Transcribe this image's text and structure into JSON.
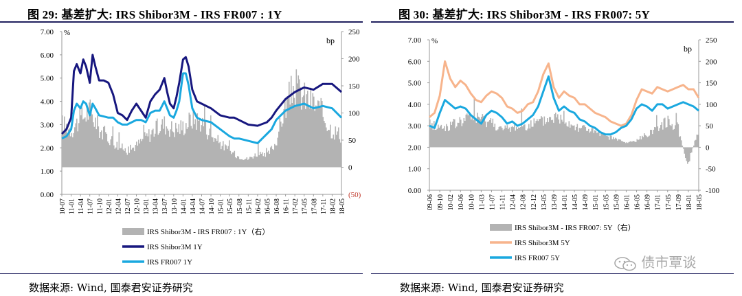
{
  "figures": [
    {
      "title": "图 29:  基差扩大:  IRS Shibor3M - IRS FR007 : 1Y",
      "source": "数据来源:  Wind,  国泰君安证券研究"
    },
    {
      "title": "图 30:  基差扩大:  IRS Shibor3M - IRS FR007: 5Y",
      "source": "数据来源:  Wind,  国泰君安证券研究"
    }
  ],
  "watermark": "债市覃谈",
  "colors": {
    "basis": "#b3b3b3",
    "navy": "#17177f",
    "cyan": "#1aa8df",
    "peach": "#f7b48c",
    "neg_label": "#c0392b",
    "frame": "#1f1f5e"
  },
  "chart_data": [
    {
      "type": "line",
      "title": "",
      "left_axis_unit": "%",
      "right_axis_unit": "bp",
      "left_ylim": [
        0,
        7
      ],
      "left_ticks": [
        "0.00",
        "1.00",
        "2.00",
        "3.00",
        "4.00",
        "5.00",
        "6.00",
        "7.00"
      ],
      "right_ylim": [
        -50,
        250
      ],
      "right_ticks": [
        "(50)",
        "0",
        "50",
        "100",
        "150",
        "200",
        "250"
      ],
      "x_ticks": [
        "10-07",
        "11-01",
        "11-04",
        "11-07",
        "11-10",
        "12-01",
        "12-04",
        "12-07",
        "12-10",
        "13-01",
        "13-04",
        "13-07",
        "13-10",
        "14-01",
        "14-04",
        "14-07",
        "14-10",
        "15-01",
        "15-05",
        "15-08",
        "15-11",
        "16-02",
        "16-05",
        "16-08",
        "16-11",
        "17-02",
        "17-05",
        "17-08",
        "17-11",
        "18-02",
        "18-05"
      ],
      "grid": false,
      "legend_position": "bottom",
      "series": [
        {
          "name": "IRS Shibor3M - IRS FR007 : 1Y（右）",
          "axis": "right",
          "style": "bar",
          "x": [
            0,
            1,
            2,
            3,
            4,
            5,
            6,
            7,
            8,
            9,
            10,
            11,
            12,
            13,
            14,
            15,
            16,
            17,
            18,
            19,
            20,
            21,
            22,
            23,
            24,
            25,
            26,
            27,
            28,
            29,
            30
          ],
          "y": [
            80,
            70,
            90,
            105,
            70,
            55,
            40,
            30,
            40,
            55,
            70,
            80,
            70,
            75,
            90,
            85,
            60,
            45,
            30,
            20,
            15,
            25,
            20,
            45,
            110,
            150,
            130,
            120,
            100,
            70,
            60
          ]
        },
        {
          "name": "IRS Shibor3M 1Y",
          "axis": "left",
          "x": [
            0,
            0.5,
            1,
            1.3,
            1.6,
            2,
            2.3,
            2.6,
            3,
            3.3,
            3.6,
            4,
            4.5,
            5,
            5.5,
            6,
            6.5,
            7,
            7.5,
            8,
            8.5,
            9,
            9.5,
            10,
            10.5,
            11,
            11.3,
            11.6,
            12,
            12.3,
            12.6,
            13,
            13.3,
            13.6,
            14,
            14.5,
            15,
            16,
            17,
            18,
            18.5,
            19,
            20,
            21,
            22,
            22.5,
            23,
            24,
            25,
            26,
            27,
            28,
            29,
            30
          ],
          "y": [
            2.6,
            2.8,
            3.3,
            5.3,
            5.6,
            5.2,
            5.8,
            5.5,
            4.8,
            6.0,
            5.5,
            4.9,
            4.9,
            4.8,
            4.3,
            3.5,
            3.4,
            3.2,
            3.6,
            3.9,
            3.6,
            3.3,
            4.0,
            4.3,
            4.5,
            5.0,
            4.4,
            3.9,
            3.7,
            4.2,
            4.8,
            5.8,
            5.9,
            5.5,
            4.5,
            4.0,
            3.9,
            3.7,
            3.4,
            3.3,
            3.3,
            3.2,
            3.0,
            2.95,
            3.1,
            3.3,
            3.6,
            4.1,
            4.4,
            4.6,
            4.5,
            4.75,
            4.75,
            4.4
          ]
        },
        {
          "name": "IRS FR007 1Y",
          "axis": "left",
          "x": [
            0,
            0.5,
            1,
            1.3,
            1.6,
            2,
            2.3,
            2.6,
            3,
            3.3,
            3.6,
            4,
            4.5,
            5,
            5.5,
            6,
            6.5,
            7,
            7.5,
            8,
            8.5,
            9,
            9.5,
            10,
            10.5,
            11,
            11.3,
            11.6,
            12,
            12.3,
            12.6,
            13,
            13.3,
            13.6,
            14,
            14.5,
            15,
            16,
            17,
            18,
            18.5,
            19,
            20,
            21,
            22,
            22.5,
            23,
            24,
            25,
            26,
            27,
            28,
            29,
            30
          ],
          "y": [
            2.4,
            2.5,
            2.8,
            3.6,
            3.9,
            3.7,
            4.0,
            3.9,
            3.4,
            3.9,
            3.7,
            3.4,
            3.35,
            3.3,
            3.3,
            3.1,
            3.0,
            3.0,
            3.1,
            3.2,
            3.2,
            3.1,
            3.5,
            3.6,
            3.6,
            4.0,
            3.7,
            3.4,
            3.3,
            3.6,
            4.0,
            5.2,
            5.2,
            4.7,
            3.7,
            3.3,
            3.2,
            3.1,
            2.8,
            2.5,
            2.4,
            2.4,
            2.3,
            2.2,
            2.6,
            2.8,
            3.2,
            3.6,
            3.8,
            3.9,
            3.7,
            3.8,
            3.7,
            3.3
          ]
        }
      ]
    },
    {
      "type": "line",
      "title": "",
      "left_axis_unit": "%",
      "right_axis_unit": "bp",
      "left_ylim": [
        0,
        7
      ],
      "left_ticks": [
        "0.00",
        "1.00",
        "2.00",
        "3.00",
        "4.00",
        "5.00",
        "6.00",
        "7.00"
      ],
      "right_ylim": [
        -100,
        250
      ],
      "right_ticks": [
        "-100",
        "-50",
        "0",
        "50",
        "100",
        "150",
        "200",
        "250"
      ],
      "x_ticks": [
        "09-06",
        "09-10",
        "10-02",
        "10-06",
        "10-10",
        "11-03",
        "11-07",
        "11-11",
        "12-04",
        "12-08",
        "12-12",
        "13-05",
        "13-09",
        "14-01",
        "14-05",
        "14-09",
        "15-01",
        "15-05",
        "15-09",
        "16-01",
        "16-05",
        "16-09",
        "17-01",
        "17-05",
        "17-09",
        "18-01",
        "18-05"
      ],
      "grid": false,
      "legend_position": "bottom",
      "series": [
        {
          "name": "IRS Shibor3M - IRS FR007: 5Y（右）",
          "axis": "right",
          "style": "bar",
          "x": [
            0,
            1,
            2,
            3,
            4,
            5,
            6,
            7,
            8,
            9,
            10,
            11,
            12,
            13,
            14,
            15,
            16,
            17,
            18,
            19,
            20,
            21,
            22,
            23,
            24,
            25,
            26
          ],
          "y": [
            55,
            45,
            50,
            60,
            70,
            65,
            60,
            40,
            45,
            50,
            55,
            60,
            70,
            65,
            50,
            45,
            35,
            25,
            20,
            10,
            15,
            30,
            45,
            60,
            50,
            -40,
            35
          ]
        },
        {
          "name": "IRS Shibor3M 5Y",
          "axis": "left",
          "x": [
            0,
            0.5,
            1,
            1.5,
            2,
            2.5,
            3,
            3.5,
            4,
            4.5,
            5,
            5.5,
            6,
            6.5,
            7,
            7.5,
            8,
            8.5,
            9,
            9.5,
            10,
            10.5,
            11,
            11.5,
            12,
            12.5,
            13,
            13.5,
            14,
            14.5,
            15,
            15.5,
            16,
            16.5,
            17,
            17.5,
            18,
            18.5,
            19,
            19.5,
            20,
            20.5,
            21,
            21.5,
            22,
            22.5,
            23,
            23.5,
            24,
            24.5,
            25,
            25.5,
            26
          ],
          "y": [
            3.4,
            3.6,
            4.4,
            6.0,
            5.2,
            4.8,
            5.1,
            4.9,
            4.5,
            4.2,
            4.1,
            4.4,
            4.6,
            4.5,
            4.3,
            3.9,
            3.8,
            3.6,
            3.7,
            4.0,
            4.1,
            4.6,
            5.4,
            5.9,
            4.8,
            4.3,
            4.6,
            4.4,
            4.3,
            4.0,
            4.0,
            3.8,
            3.6,
            3.5,
            3.4,
            3.2,
            3.1,
            3.0,
            3.1,
            3.5,
            4.2,
            4.7,
            4.6,
            4.5,
            4.8,
            4.7,
            4.6,
            4.7,
            4.8,
            4.9,
            4.7,
            4.7,
            4.3
          ]
        },
        {
          "name": "IRS FR007 5Y",
          "axis": "left",
          "x": [
            0,
            0.5,
            1,
            1.5,
            2,
            2.5,
            3,
            3.5,
            4,
            4.5,
            5,
            5.5,
            6,
            6.5,
            7,
            7.5,
            8,
            8.5,
            9,
            9.5,
            10,
            10.5,
            11,
            11.5,
            12,
            12.5,
            13,
            13.5,
            14,
            14.5,
            15,
            15.5,
            16,
            16.5,
            17,
            17.5,
            18,
            18.5,
            19,
            19.5,
            20,
            20.5,
            21,
            21.5,
            22,
            22.5,
            23,
            23.5,
            24,
            24.5,
            25,
            25.5,
            26
          ],
          "y": [
            3.0,
            2.9,
            3.6,
            4.2,
            4.0,
            3.8,
            3.9,
            3.8,
            3.5,
            3.3,
            3.1,
            3.5,
            3.7,
            3.6,
            3.4,
            3.1,
            3.2,
            3.0,
            3.1,
            3.3,
            3.5,
            3.9,
            4.6,
            5.3,
            4.3,
            3.7,
            3.9,
            3.7,
            3.6,
            3.3,
            3.2,
            3.0,
            2.9,
            2.7,
            2.6,
            2.6,
            2.7,
            2.9,
            3.0,
            3.3,
            3.8,
            4.0,
            3.9,
            3.7,
            4.0,
            4.0,
            3.8,
            3.9,
            4.0,
            4.1,
            4.0,
            3.9,
            3.7
          ]
        }
      ]
    }
  ]
}
